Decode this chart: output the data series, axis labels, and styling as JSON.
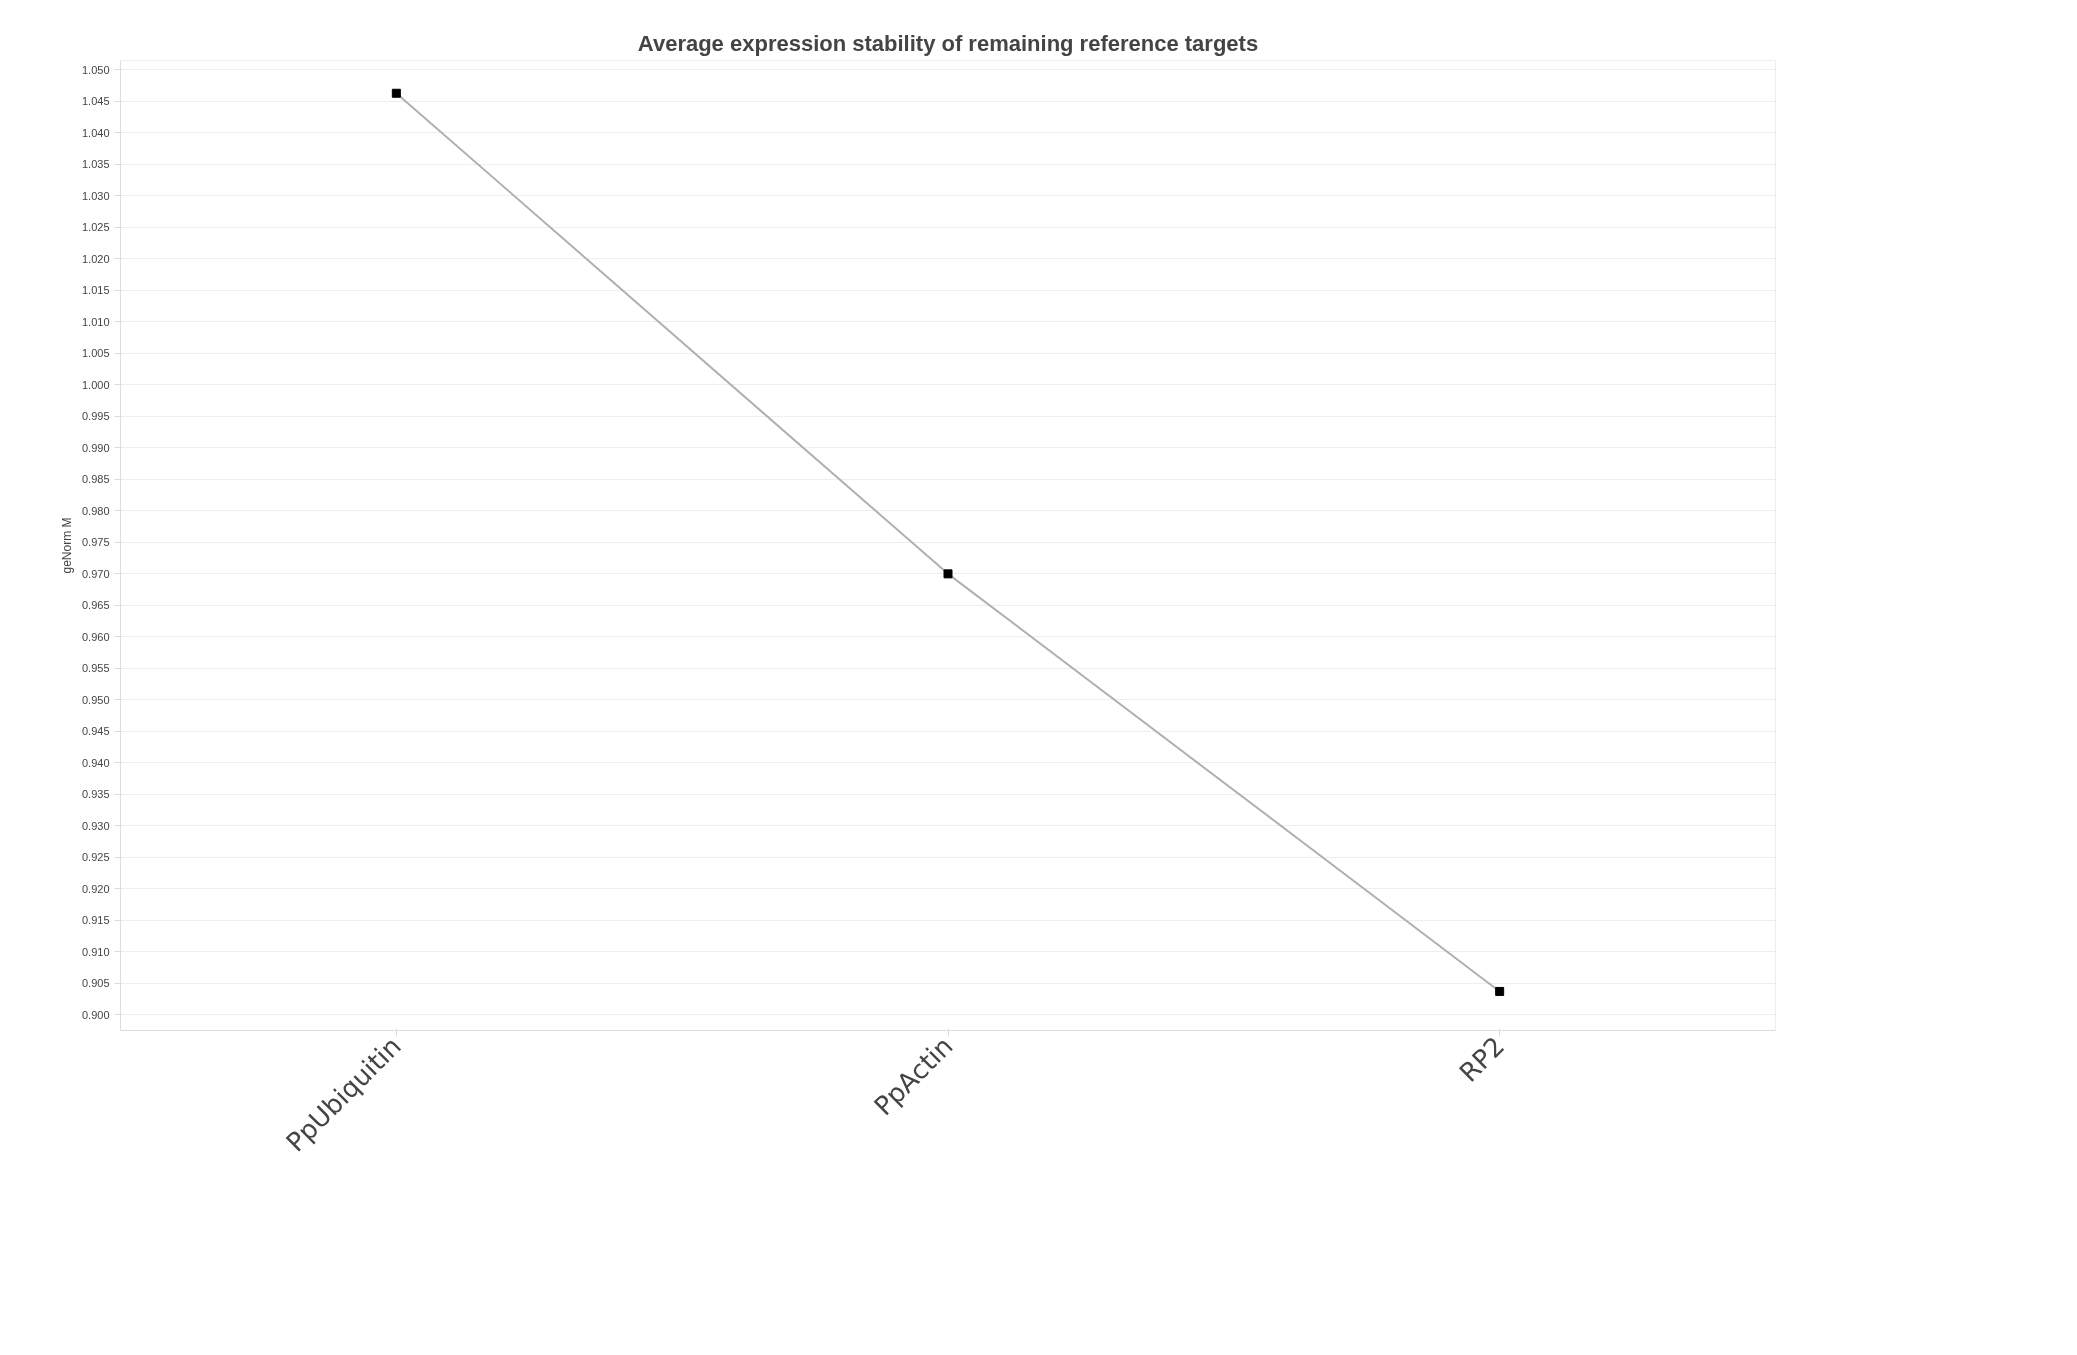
{
  "chart_data": {
    "type": "line",
    "title": "Average expression stability of remaining reference targets",
    "ylabel": "geNorm M",
    "categories": [
      "PpUbiquitin",
      "PpActin",
      "RP2"
    ],
    "series": [
      {
        "color": "#b0b0b0",
        "values": [
          1.0463,
          0.97,
          0.9037
        ]
      }
    ],
    "marker": "square",
    "ylim": [
      0.8975,
      1.0515
    ],
    "yticks": [
      {
        "value": 0.9,
        "label": "0.900"
      },
      {
        "value": 0.905,
        "label": "0.905"
      },
      {
        "value": 0.91,
        "label": "0.910"
      },
      {
        "value": 0.915,
        "label": "0.915"
      },
      {
        "value": 0.92,
        "label": "0.920"
      },
      {
        "value": 0.925,
        "label": "0.925"
      },
      {
        "value": 0.93,
        "label": "0.930"
      },
      {
        "value": 0.935,
        "label": "0.935"
      },
      {
        "value": 0.94,
        "label": "0.940"
      },
      {
        "value": 0.945,
        "label": "0.945"
      },
      {
        "value": 0.95,
        "label": "0.950"
      },
      {
        "value": 0.955,
        "label": "0.955"
      },
      {
        "value": 0.96,
        "label": "0.960"
      },
      {
        "value": 0.965,
        "label": "0.965"
      },
      {
        "value": 0.97,
        "label": "0.970"
      },
      {
        "value": 0.975,
        "label": "0.975"
      },
      {
        "value": 0.98,
        "label": "0.980"
      },
      {
        "value": 0.985,
        "label": "0.985"
      },
      {
        "value": 0.99,
        "label": "0.990"
      },
      {
        "value": 0.995,
        "label": "0.995"
      },
      {
        "value": 1.0,
        "label": "1.000"
      },
      {
        "value": 1.005,
        "label": "1.005"
      },
      {
        "value": 1.01,
        "label": "1.010"
      },
      {
        "value": 1.015,
        "label": "1.015"
      },
      {
        "value": 1.02,
        "label": "1.020"
      },
      {
        "value": 1.025,
        "label": "1.025"
      },
      {
        "value": 1.03,
        "label": "1.030"
      },
      {
        "value": 1.035,
        "label": "1.035"
      },
      {
        "value": 1.04,
        "label": "1.040"
      },
      {
        "value": 1.045,
        "label": "1.045"
      },
      {
        "value": 1.05,
        "label": "1.050"
      }
    ],
    "grid": "y"
  }
}
